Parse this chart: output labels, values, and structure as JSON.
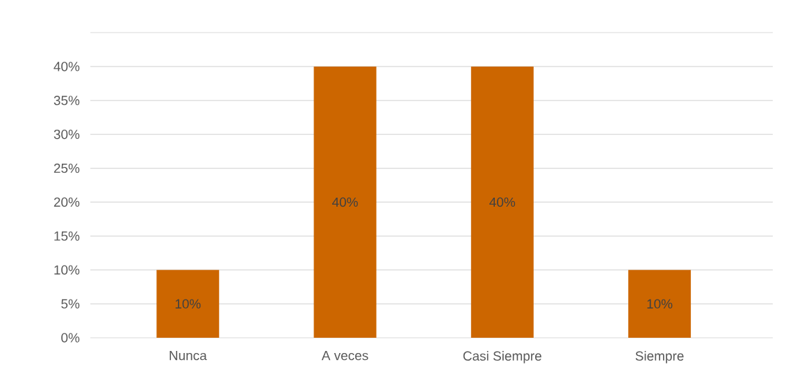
{
  "chart_data": {
    "type": "bar",
    "categories": [
      "Nunca",
      "A veces",
      "Casi Siempre",
      "Siempre"
    ],
    "values": [
      10,
      40,
      40,
      10
    ],
    "value_labels": [
      "10%",
      "40%",
      "40%",
      "10%"
    ],
    "color": "#cc6600",
    "ylim": [
      0,
      45
    ],
    "yticks": [
      {
        "value": 0,
        "label": "0%"
      },
      {
        "value": 5,
        "label": "5%"
      },
      {
        "value": 10,
        "label": "10%"
      },
      {
        "value": 15,
        "label": "15%"
      },
      {
        "value": 20,
        "label": "20%"
      },
      {
        "value": 25,
        "label": "25%"
      },
      {
        "value": 30,
        "label": "30%"
      },
      {
        "value": 35,
        "label": "35%"
      },
      {
        "value": 40,
        "label": "40%"
      }
    ],
    "grid": "y"
  }
}
